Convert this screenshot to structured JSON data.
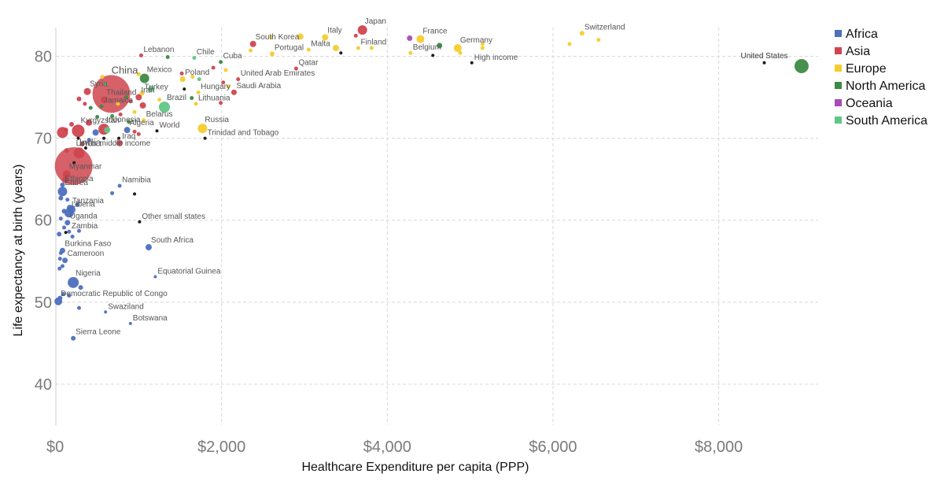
{
  "chart_data": {
    "type": "scatter",
    "title": "",
    "xlabel": "Healthcare Expenditure per capita (PPP)",
    "ylabel": "Life expectancy at birth (years)",
    "xlim": [
      0,
      9200
    ],
    "ylim": [
      35,
      83.5
    ],
    "xticks": [
      0,
      2000,
      4000,
      6000,
      8000
    ],
    "xtick_labels": [
      "$0",
      "$2,000",
      "$4,000",
      "$6,000",
      "$8,000"
    ],
    "yticks": [
      40,
      50,
      60,
      70,
      80
    ],
    "ytick_labels": [
      "40",
      "50",
      "60",
      "70",
      "80"
    ],
    "grid": true,
    "legend_position": "top-right",
    "legend": [
      {
        "name": "Africa",
        "color": "#4e6fbe"
      },
      {
        "name": "Asia",
        "color": "#d0454f"
      },
      {
        "name": "Europe",
        "color": "#f5cc2e"
      },
      {
        "name": "North America",
        "color": "#3d8a45"
      },
      {
        "name": "Oceania",
        "color": "#a84ab8"
      },
      {
        "name": "South America",
        "color": "#5fc786"
      }
    ],
    "points": [
      {
        "label": "United States",
        "x": 9000,
        "y": 78.8,
        "group": "North America",
        "size": 9
      },
      {
        "label": "United States",
        "x": 8550,
        "y": 79.2,
        "group": "aggregate",
        "size": 2
      },
      {
        "label": "Switzerland",
        "x": 6350,
        "y": 82.8,
        "group": "Europe",
        "size": 3
      },
      {
        "label": "",
        "x": 6550,
        "y": 82.0,
        "group": "Europe",
        "size": 2.5
      },
      {
        "label": "",
        "x": 6200,
        "y": 81.5,
        "group": "Europe",
        "size": 2.5
      },
      {
        "label": "Japan",
        "x": 3700,
        "y": 83.2,
        "group": "Asia",
        "size": 6
      },
      {
        "label": "",
        "x": 3620,
        "y": 82.5,
        "group": "Asia",
        "size": 2.5
      },
      {
        "label": "Italy",
        "x": 3250,
        "y": 82.3,
        "group": "Europe",
        "size": 4
      },
      {
        "label": "Finland",
        "x": 3650,
        "y": 81.0,
        "group": "Europe",
        "size": 2.5
      },
      {
        "label": "",
        "x": 3810,
        "y": 81.0,
        "group": "Europe",
        "size": 2.5
      },
      {
        "label": "France",
        "x": 4400,
        "y": 82.1,
        "group": "Europe",
        "size": 5
      },
      {
        "label": "",
        "x": 4270,
        "y": 82.2,
        "group": "Oceania",
        "size": 3.5
      },
      {
        "label": "Germany",
        "x": 4850,
        "y": 81.0,
        "group": "Europe",
        "size": 5
      },
      {
        "label": "",
        "x": 4630,
        "y": 81.3,
        "group": "North America",
        "size": 3.5
      },
      {
        "label": "",
        "x": 5150,
        "y": 81.5,
        "group": "Europe",
        "size": 2.5
      },
      {
        "label": "",
        "x": 5150,
        "y": 81.0,
        "group": "Europe",
        "size": 2.5
      },
      {
        "label": "Belgium",
        "x": 4280,
        "y": 80.4,
        "group": "Europe",
        "size": 2.5
      },
      {
        "label": "",
        "x": 4550,
        "y": 80.1,
        "group": "aggregate",
        "size": 2
      },
      {
        "label": "",
        "x": 4880,
        "y": 80.4,
        "group": "Europe",
        "size": 2.5
      },
      {
        "label": "High income",
        "x": 5020,
        "y": 79.2,
        "group": "aggregate",
        "size": 2
      },
      {
        "label": "South Korea",
        "x": 2380,
        "y": 81.5,
        "group": "Asia",
        "size": 4
      },
      {
        "label": "",
        "x": 2600,
        "y": 82.3,
        "group": "Europe",
        "size": 2.5
      },
      {
        "label": "",
        "x": 2950,
        "y": 82.4,
        "group": "Europe",
        "size": 4
      },
      {
        "label": "Portugal",
        "x": 2610,
        "y": 80.3,
        "group": "Europe",
        "size": 3
      },
      {
        "label": "",
        "x": 2350,
        "y": 80.7,
        "group": "Europe",
        "size": 2.5
      },
      {
        "label": "Malta",
        "x": 3050,
        "y": 80.8,
        "group": "Europe",
        "size": 2.5
      },
      {
        "label": "",
        "x": 3380,
        "y": 81.0,
        "group": "Europe",
        "size": 4
      },
      {
        "label": "",
        "x": 3440,
        "y": 80.4,
        "group": "aggregate",
        "size": 2
      },
      {
        "label": "Qatar",
        "x": 2900,
        "y": 78.5,
        "group": "Asia",
        "size": 2.5
      },
      {
        "label": "Cuba",
        "x": 1990,
        "y": 79.3,
        "group": "North America",
        "size": 2.5
      },
      {
        "label": "",
        "x": 2050,
        "y": 78.3,
        "group": "Europe",
        "size": 2.5
      },
      {
        "label": "United Arab Emirates",
        "x": 2200,
        "y": 77.2,
        "group": "Asia",
        "size": 2.5
      },
      {
        "label": "Saudi Arabia",
        "x": 2150,
        "y": 75.6,
        "group": "Asia",
        "size": 3.5
      },
      {
        "label": "",
        "x": 1900,
        "y": 78.6,
        "group": "Asia",
        "size": 2.5
      },
      {
        "label": "",
        "x": 2020,
        "y": 76.8,
        "group": "Asia",
        "size": 2.5
      },
      {
        "label": "",
        "x": 2080,
        "y": 76.3,
        "group": "Europe",
        "size": 2.5
      },
      {
        "label": "",
        "x": 1990,
        "y": 74.3,
        "group": "Asia",
        "size": 2.5
      },
      {
        "label": "Chile",
        "x": 1670,
        "y": 79.8,
        "group": "South America",
        "size": 2.5
      },
      {
        "label": "Lebanon",
        "x": 1030,
        "y": 80.1,
        "group": "Asia",
        "size": 2.5
      },
      {
        "label": "",
        "x": 1350,
        "y": 79.9,
        "group": "North America",
        "size": 2.5
      },
      {
        "label": "Poland",
        "x": 1530,
        "y": 77.2,
        "group": "Europe",
        "size": 3.5
      },
      {
        "label": "",
        "x": 1520,
        "y": 77.9,
        "group": "Asia",
        "size": 2.5
      },
      {
        "label": "",
        "x": 1650,
        "y": 77.5,
        "group": "Europe",
        "size": 2.5
      },
      {
        "label": "",
        "x": 1730,
        "y": 77.2,
        "group": "South America",
        "size": 2.5
      },
      {
        "label": "Hungary",
        "x": 1720,
        "y": 75.6,
        "group": "Europe",
        "size": 2.5
      },
      {
        "label": "Lithuania",
        "x": 1690,
        "y": 74.2,
        "group": "Europe",
        "size": 2.5
      },
      {
        "label": "",
        "x": 1640,
        "y": 74.9,
        "group": "North America",
        "size": 2.5
      },
      {
        "label": "",
        "x": 1550,
        "y": 76.0,
        "group": "aggregate",
        "size": 2
      },
      {
        "label": "Mexico",
        "x": 1070,
        "y": 77.3,
        "group": "North America",
        "size": 6
      },
      {
        "label": "",
        "x": 1000,
        "y": 77.8,
        "group": "Europe",
        "size": 2.5
      },
      {
        "label": "Turkey",
        "x": 1040,
        "y": 75.5,
        "group": "Europe",
        "size": 3
      },
      {
        "label": "",
        "x": 1150,
        "y": 76.0,
        "group": "South America",
        "size": 4
      },
      {
        "label": "Iran",
        "x": 1000,
        "y": 75.0,
        "group": "Asia",
        "size": 4
      },
      {
        "label": "",
        "x": 1050,
        "y": 74.0,
        "group": "Asia",
        "size": 4
      },
      {
        "label": "Brazil",
        "x": 1310,
        "y": 73.8,
        "group": "South America",
        "size": 7
      },
      {
        "label": "",
        "x": 1250,
        "y": 74.7,
        "group": "Europe",
        "size": 2.5
      },
      {
        "label": "China",
        "x": 670,
        "y": 75.4,
        "group": "Asia",
        "size": 24
      },
      {
        "label": "Thailand",
        "x": 580,
        "y": 74.7,
        "group": "Asia",
        "size": 4
      },
      {
        "label": "Syria",
        "x": 380,
        "y": 75.7,
        "group": "Asia",
        "size": 4.5
      },
      {
        "label": "",
        "x": 280,
        "y": 74.8,
        "group": "Asia",
        "size": 3
      },
      {
        "label": "Jamaica",
        "x": 550,
        "y": 73.9,
        "group": "North America",
        "size": 2.5
      },
      {
        "label": "",
        "x": 420,
        "y": 73.7,
        "group": "North America",
        "size": 2.5
      },
      {
        "label": "",
        "x": 350,
        "y": 74.2,
        "group": "Asia",
        "size": 2.5
      },
      {
        "label": "",
        "x": 750,
        "y": 74.2,
        "group": "Europe",
        "size": 2.5
      },
      {
        "label": "",
        "x": 900,
        "y": 74.5,
        "group": "Asia",
        "size": 2.5
      },
      {
        "label": "",
        "x": 850,
        "y": 75.0,
        "group": "North America",
        "size": 2.5
      },
      {
        "label": "",
        "x": 600,
        "y": 76.6,
        "group": "South America",
        "size": 2.5
      },
      {
        "label": "",
        "x": 560,
        "y": 77.5,
        "group": "Europe",
        "size": 2.5
      },
      {
        "label": "",
        "x": 500,
        "y": 72.6,
        "group": "North America",
        "size": 2.5
      },
      {
        "label": "",
        "x": 680,
        "y": 72.7,
        "group": "North America",
        "size": 2.5
      },
      {
        "label": "",
        "x": 780,
        "y": 72.9,
        "group": "Asia",
        "size": 2.5
      },
      {
        "label": "",
        "x": 950,
        "y": 73.2,
        "group": "Europe",
        "size": 2.5
      },
      {
        "label": "Belarus",
        "x": 1060,
        "y": 72.2,
        "group": "Europe",
        "size": 2.5
      },
      {
        "label": "Algeria",
        "x": 860,
        "y": 71.0,
        "group": "Africa",
        "size": 4
      },
      {
        "label": "",
        "x": 880,
        "y": 72.0,
        "group": "North America",
        "size": 2.5
      },
      {
        "label": "",
        "x": 950,
        "y": 70.8,
        "group": "Asia",
        "size": 2.5
      },
      {
        "label": "",
        "x": 1000,
        "y": 70.5,
        "group": "Asia",
        "size": 2.5
      },
      {
        "label": "World",
        "x": 1220,
        "y": 70.9,
        "group": "aggregate",
        "size": 2
      },
      {
        "label": "Iraq",
        "x": 770,
        "y": 69.4,
        "group": "Asia",
        "size": 4
      },
      {
        "label": "",
        "x": 760,
        "y": 70.0,
        "group": "aggregate",
        "size": 2
      },
      {
        "label": "Russia",
        "x": 1770,
        "y": 71.2,
        "group": "Europe",
        "size": 6
      },
      {
        "label": "Trinidad and Tobago",
        "x": 1800,
        "y": 70.0,
        "group": "aggregate",
        "size": 2
      },
      {
        "label": "Indonesia",
        "x": 580,
        "y": 71.1,
        "group": "Asia",
        "size": 7
      },
      {
        "label": "",
        "x": 400,
        "y": 71.9,
        "group": "Asia",
        "size": 4
      },
      {
        "label": "",
        "x": 620,
        "y": 71.0,
        "group": "South America",
        "size": 4
      },
      {
        "label": "",
        "x": 480,
        "y": 70.7,
        "group": "Africa",
        "size": 4
      },
      {
        "label": "",
        "x": 190,
        "y": 71.7,
        "group": "Asia",
        "size": 3
      },
      {
        "label": "",
        "x": 120,
        "y": 71.0,
        "group": "Asia",
        "size": 3
      },
      {
        "label": "Kyrgyzstan",
        "x": 270,
        "y": 70.9,
        "group": "Asia",
        "size": 8
      },
      {
        "label": "",
        "x": 80,
        "y": 70.7,
        "group": "Asia",
        "size": 7
      },
      {
        "label": "",
        "x": 270,
        "y": 70.0,
        "group": "aggregate",
        "size": 2
      },
      {
        "label": "",
        "x": 400,
        "y": 69.8,
        "group": "Africa",
        "size": 2.5
      },
      {
        "label": "",
        "x": 580,
        "y": 70.0,
        "group": "aggregate",
        "size": 2
      },
      {
        "label": "India",
        "x": 280,
        "y": 68.2,
        "group": "Asia",
        "size": 7
      },
      {
        "label": "",
        "x": 130,
        "y": 68.5,
        "group": "Asia",
        "size": 3
      },
      {
        "label": "",
        "x": 320,
        "y": 69.3,
        "group": "Asia",
        "size": 3
      },
      {
        "label": "",
        "x": 360,
        "y": 68.8,
        "group": "aggregate",
        "size": 2
      },
      {
        "label": "Lower middle income",
        "x": 215,
        "y": 66.6,
        "group": "Asia",
        "size": 24
      },
      {
        "label": "Myanmar",
        "x": 130,
        "y": 65.6,
        "group": "Asia",
        "size": 5
      },
      {
        "label": "",
        "x": 220,
        "y": 67.0,
        "group": "aggregate",
        "size": 2
      },
      {
        "label": "",
        "x": 110,
        "y": 64.9,
        "group": "Asia",
        "size": 4
      },
      {
        "label": "Ethiopia",
        "x": 80,
        "y": 64.3,
        "group": "Africa",
        "size": 3
      },
      {
        "label": "Namibia",
        "x": 770,
        "y": 64.2,
        "group": "Africa",
        "size": 2.5
      },
      {
        "label": "",
        "x": 680,
        "y": 63.3,
        "group": "Africa",
        "size": 2.5
      },
      {
        "label": "",
        "x": 950,
        "y": 63.2,
        "group": "aggregate",
        "size": 2
      },
      {
        "label": "Eritrea",
        "x": 80,
        "y": 63.5,
        "group": "Africa",
        "size": 6
      },
      {
        "label": "",
        "x": 60,
        "y": 62.7,
        "group": "Africa",
        "size": 3
      },
      {
        "label": "",
        "x": 140,
        "y": 62.5,
        "group": "Africa",
        "size": 2.5
      },
      {
        "label": "Tanzania",
        "x": 170,
        "y": 61.5,
        "group": "Africa",
        "size": 4
      },
      {
        "label": "",
        "x": 260,
        "y": 61.9,
        "group": "Africa",
        "size": 3
      },
      {
        "label": "Liberia",
        "x": 160,
        "y": 60.9,
        "group": "Africa",
        "size": 6
      },
      {
        "label": "",
        "x": 100,
        "y": 61.1,
        "group": "Africa",
        "size": 3
      },
      {
        "label": "",
        "x": 190,
        "y": 61.3,
        "group": "Africa",
        "size": 5
      },
      {
        "label": "Other small states",
        "x": 1010,
        "y": 59.8,
        "group": "aggregate",
        "size": 2
      },
      {
        "label": "Uganda",
        "x": 140,
        "y": 59.7,
        "group": "Africa",
        "size": 3.5
      },
      {
        "label": "",
        "x": 60,
        "y": 60.2,
        "group": "Africa",
        "size": 2.5
      },
      {
        "label": "",
        "x": 100,
        "y": 59.1,
        "group": "Africa",
        "size": 2.5
      },
      {
        "label": "Zambia",
        "x": 160,
        "y": 58.6,
        "group": "Africa",
        "size": 2.5
      },
      {
        "label": "",
        "x": 40,
        "y": 58.3,
        "group": "Africa",
        "size": 3
      },
      {
        "label": "",
        "x": 120,
        "y": 58.5,
        "group": "aggregate",
        "size": 2
      },
      {
        "label": "",
        "x": 200,
        "y": 58.0,
        "group": "Africa",
        "size": 2.5
      },
      {
        "label": "",
        "x": 280,
        "y": 58.7,
        "group": "Africa",
        "size": 2.5
      },
      {
        "label": "South Africa",
        "x": 1120,
        "y": 56.7,
        "group": "Africa",
        "size": 4
      },
      {
        "label": "Burkina Faso",
        "x": 80,
        "y": 56.3,
        "group": "Africa",
        "size": 3.5
      },
      {
        "label": "",
        "x": 60,
        "y": 56.0,
        "group": "Africa",
        "size": 2.5
      },
      {
        "label": "Cameroon",
        "x": 110,
        "y": 55.1,
        "group": "Africa",
        "size": 3.5
      },
      {
        "label": "",
        "x": 50,
        "y": 55.3,
        "group": "Africa",
        "size": 2.5
      },
      {
        "label": "",
        "x": 80,
        "y": 54.4,
        "group": "Africa",
        "size": 2.5
      },
      {
        "label": "",
        "x": 45,
        "y": 54.1,
        "group": "Africa",
        "size": 2.5
      },
      {
        "label": "Nigeria",
        "x": 210,
        "y": 52.4,
        "group": "Africa",
        "size": 7
      },
      {
        "label": "",
        "x": 300,
        "y": 51.8,
        "group": "Africa",
        "size": 3
      },
      {
        "label": "Equatorial Guinea",
        "x": 1200,
        "y": 53.1,
        "group": "Africa",
        "size": 2
      },
      {
        "label": "Democratic Republic of Congo",
        "x": 30,
        "y": 50.1,
        "group": "Africa",
        "size": 5
      },
      {
        "label": "",
        "x": 50,
        "y": 50.5,
        "group": "Africa",
        "size": 3
      },
      {
        "label": "",
        "x": 90,
        "y": 51.0,
        "group": "Africa",
        "size": 2.5
      },
      {
        "label": "",
        "x": 160,
        "y": 50.8,
        "group": "Africa",
        "size": 2.5
      },
      {
        "label": "",
        "x": 280,
        "y": 49.3,
        "group": "Africa",
        "size": 2.5
      },
      {
        "label": "Swaziland",
        "x": 600,
        "y": 48.8,
        "group": "Africa",
        "size": 2
      },
      {
        "label": "Botswana",
        "x": 900,
        "y": 47.4,
        "group": "Africa",
        "size": 2
      },
      {
        "label": "Sierra Leone",
        "x": 210,
        "y": 45.6,
        "group": "Africa",
        "size": 3
      }
    ]
  }
}
